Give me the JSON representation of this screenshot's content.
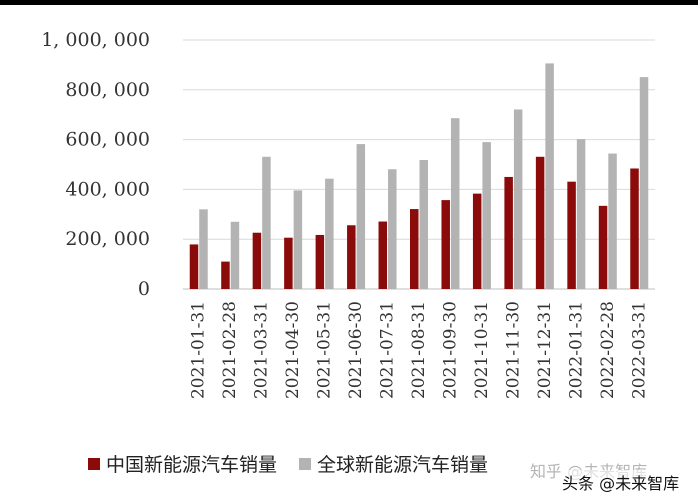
{
  "chart_data": {
    "type": "bar",
    "categories": [
      "2021-01-31",
      "2021-02-28",
      "2021-03-31",
      "2021-04-30",
      "2021-05-31",
      "2021-06-30",
      "2021-07-31",
      "2021-08-31",
      "2021-09-30",
      "2021-10-31",
      "2021-11-30",
      "2021-12-31",
      "2022-01-31",
      "2022-02-28",
      "2022-03-31"
    ],
    "series": [
      {
        "name": "中国新能源汽车销量",
        "color": "#8B0A0A",
        "values": [
          179000,
          110000,
          226000,
          206000,
          217000,
          256000,
          271000,
          321000,
          357000,
          383000,
          450000,
          531000,
          431000,
          334000,
          484000
        ]
      },
      {
        "name": "全球新能源汽车销量",
        "color": "#b3b3b3",
        "values": [
          320000,
          270000,
          531000,
          396000,
          443000,
          582000,
          481000,
          518000,
          686000,
          590000,
          721000,
          906000,
          602000,
          544000,
          851000
        ]
      }
    ],
    "yticks": [
      "0",
      "200, 000",
      "400, 000",
      "600, 000",
      "800, 000",
      "1, 000, 000"
    ],
    "ylim": [
      0,
      1000000
    ],
    "grid": true,
    "legend_position": "bottom"
  },
  "watermark": {
    "line1": "知乎 @未来智库",
    "line2": "头条 @未来智库"
  }
}
